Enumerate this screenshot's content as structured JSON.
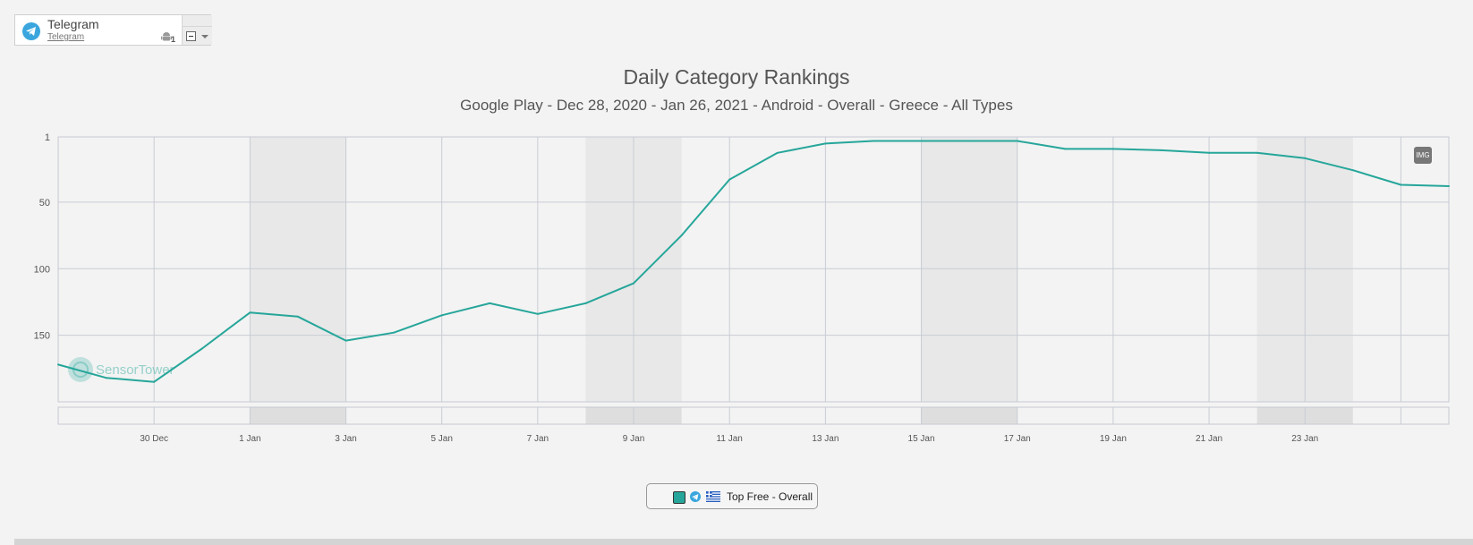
{
  "app": {
    "name": "Telegram",
    "developer": "Telegram",
    "platform_icon": "android-icon",
    "platform_count": "1"
  },
  "chart_data": {
    "type": "line",
    "title": "Daily Category Rankings",
    "subtitle": "Google Play - Dec 28, 2020 - Jan 26, 2021 - Android - Overall - Greece - All Types",
    "y_reversed": true,
    "ylim": [
      1,
      200
    ],
    "y_ticks": [
      1,
      50,
      100,
      150
    ],
    "x_range": [
      "2020-12-28",
      "2021-01-26"
    ],
    "x_ticks": [
      {
        "date": "2020-12-30",
        "label": "30 Dec"
      },
      {
        "date": "2021-01-01",
        "label": "1 Jan"
      },
      {
        "date": "2021-01-03",
        "label": "3 Jan"
      },
      {
        "date": "2021-01-05",
        "label": "5 Jan"
      },
      {
        "date": "2021-01-07",
        "label": "7 Jan"
      },
      {
        "date": "2021-01-09",
        "label": "9 Jan"
      },
      {
        "date": "2021-01-11",
        "label": "11 Jan"
      },
      {
        "date": "2021-01-13",
        "label": "13 Jan"
      },
      {
        "date": "2021-01-15",
        "label": "15 Jan"
      },
      {
        "date": "2021-01-17",
        "label": "17 Jan"
      },
      {
        "date": "2021-01-19",
        "label": "19 Jan"
      },
      {
        "date": "2021-01-21",
        "label": "21 Jan"
      },
      {
        "date": "2021-01-23",
        "label": "23 Jan"
      }
    ],
    "weekend_bands": [
      [
        "2021-01-01",
        "2021-01-03"
      ],
      [
        "2021-01-08",
        "2021-01-10"
      ],
      [
        "2021-01-15",
        "2021-01-17"
      ],
      [
        "2021-01-22",
        "2021-01-24"
      ]
    ],
    "grid": true,
    "series": [
      {
        "name": "Top Free - Overall",
        "color": "#26a69a",
        "x": [
          "2020-12-28",
          "2020-12-29",
          "2020-12-30",
          "2020-12-31",
          "2021-01-01",
          "2021-01-02",
          "2021-01-03",
          "2021-01-04",
          "2021-01-05",
          "2021-01-06",
          "2021-01-07",
          "2021-01-08",
          "2021-01-09",
          "2021-01-10",
          "2021-01-11",
          "2021-01-12",
          "2021-01-13",
          "2021-01-14",
          "2021-01-15",
          "2021-01-16",
          "2021-01-17",
          "2021-01-18",
          "2021-01-19",
          "2021-01-20",
          "2021-01-21",
          "2021-01-22",
          "2021-01-23",
          "2021-01-24",
          "2021-01-25",
          "2021-01-26"
        ],
        "values": [
          172,
          182,
          185,
          160,
          133,
          136,
          154,
          148,
          135,
          126,
          134,
          126,
          111,
          75,
          33,
          13,
          6,
          4,
          4,
          4,
          4,
          10,
          10,
          11,
          13,
          13,
          17,
          26,
          37,
          38
        ]
      }
    ]
  },
  "legend": {
    "label": "Top Free - Overall",
    "swatch_color": "#26a69a"
  },
  "watermark": "SensorTower",
  "export_button": "IMG"
}
